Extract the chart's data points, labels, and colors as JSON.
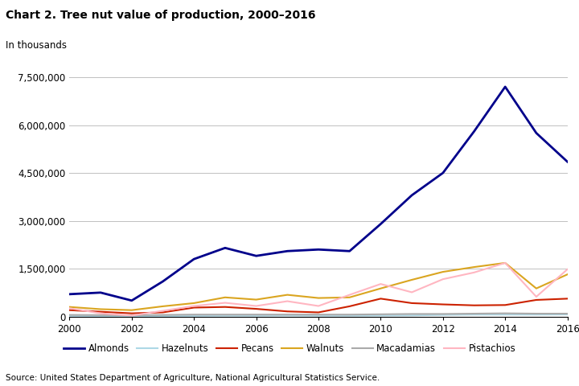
{
  "title": "Chart 2. Tree nut value of production, 2000–2016",
  "subtitle": "In thousands",
  "source": "Source: United States Department of Agriculture, National Agricultural Statistics Service.",
  "years": [
    2000,
    2001,
    2002,
    2003,
    2004,
    2005,
    2006,
    2007,
    2008,
    2009,
    2010,
    2011,
    2012,
    2013,
    2014,
    2015,
    2016
  ],
  "series": {
    "Almonds": [
      700000,
      750000,
      500000,
      1100000,
      1800000,
      2150000,
      1900000,
      2050000,
      2100000,
      2050000,
      2900000,
      3800000,
      4500000,
      5800000,
      7200000,
      5750000,
      4850000
    ],
    "Hazelnuts": [
      20000,
      15000,
      10000,
      15000,
      20000,
      25000,
      25000,
      30000,
      25000,
      25000,
      30000,
      35000,
      50000,
      60000,
      60000,
      60000,
      65000
    ],
    "Pecans": [
      200000,
      150000,
      100000,
      130000,
      280000,
      300000,
      240000,
      160000,
      130000,
      320000,
      560000,
      420000,
      380000,
      350000,
      360000,
      520000,
      560000
    ],
    "Walnuts": [
      300000,
      230000,
      200000,
      320000,
      420000,
      600000,
      530000,
      680000,
      580000,
      600000,
      880000,
      1150000,
      1400000,
      1550000,
      1680000,
      880000,
      1320000
    ],
    "Macadamias": [
      50000,
      45000,
      40000,
      50000,
      60000,
      60000,
      60000,
      60000,
      60000,
      60000,
      70000,
      80000,
      80000,
      90000,
      100000,
      90000,
      90000
    ],
    "Pistachios": [
      260000,
      100000,
      30000,
      180000,
      330000,
      430000,
      330000,
      480000,
      330000,
      680000,
      1020000,
      760000,
      1170000,
      1380000,
      1680000,
      620000,
      1480000
    ]
  },
  "colors": {
    "Almonds": "#00008B",
    "Hazelnuts": "#ADD8E6",
    "Pecans": "#CC2200",
    "Walnuts": "#DAA520",
    "Macadamias": "#AAAAAA",
    "Pistachios": "#FFB6C1"
  },
  "line_widths": {
    "Almonds": 2.0,
    "Hazelnuts": 1.5,
    "Pecans": 1.5,
    "Walnuts": 1.5,
    "Macadamias": 1.5,
    "Pistachios": 1.5
  },
  "ylim": [
    0,
    7500000
  ],
  "yticks": [
    0,
    1500000,
    3000000,
    4500000,
    6000000,
    7500000
  ],
  "ytick_labels": [
    "0",
    "1,500,000",
    "3,000,000",
    "4,500,000",
    "6,000,000",
    "7,500,000"
  ],
  "xticks": [
    2000,
    2002,
    2004,
    2006,
    2008,
    2010,
    2012,
    2014,
    2016
  ],
  "background_color": "#ffffff",
  "grid_color": "#c0c0c0"
}
